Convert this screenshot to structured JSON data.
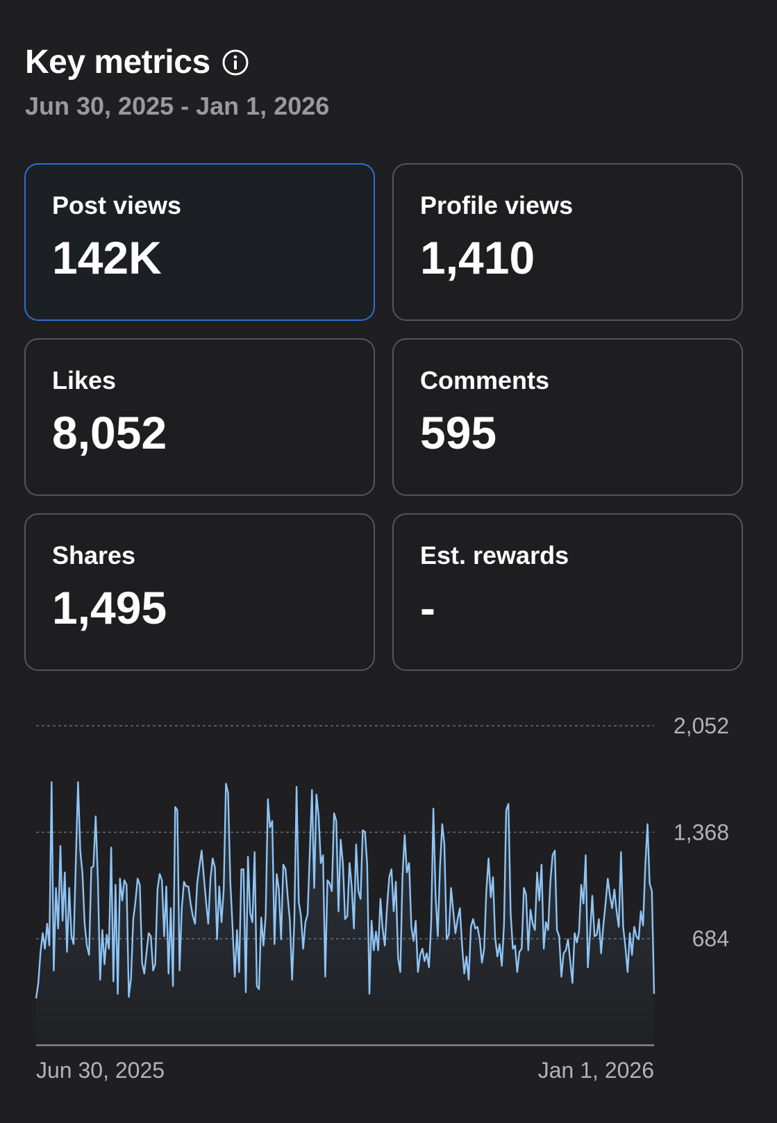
{
  "header": {
    "title": "Key metrics",
    "date_range": "Jun 30, 2025 - Jan 1, 2026",
    "info_icon": "info-icon"
  },
  "metrics": [
    {
      "label": "Post views",
      "value": "142K",
      "selected": true
    },
    {
      "label": "Profile views",
      "value": "1,410",
      "selected": false
    },
    {
      "label": "Likes",
      "value": "8,052",
      "selected": false
    },
    {
      "label": "Comments",
      "value": "595",
      "selected": false
    },
    {
      "label": "Shares",
      "value": "1,495",
      "selected": false
    },
    {
      "label": "Est. rewards",
      "value": "-",
      "selected": false
    }
  ],
  "colors": {
    "selected_border": "#2f6fd1",
    "line": "#8fc4f5",
    "background": "#1f1f21"
  },
  "chart_data": {
    "type": "line",
    "x_start": "Jun 30, 2025",
    "x_end": "Jan 1, 2026",
    "xtick_labels": [
      "Jun 30, 2025",
      "Jan 1, 2026"
    ],
    "ytick_labels": [
      "2,052",
      "1,368",
      "684"
    ],
    "ylim": [
      0,
      2052
    ],
    "grid": "dashed horizontal",
    "series": [
      {
        "values": [
          300,
          400,
          600,
          720,
          620,
          780,
          640,
          1690,
          480,
          1010,
          750,
          1280,
          800,
          1110,
          600,
          1010,
          700,
          650,
          1180,
          1690,
          1250,
          1100,
          780,
          640,
          580,
          1140,
          1150,
          1470,
          1060,
          420,
          740,
          520,
          710,
          620,
          1270,
          410,
          1030,
          330,
          1070,
          930,
          1060,
          1030,
          310,
          430,
          810,
          920,
          1070,
          1030,
          530,
          460,
          590,
          720,
          700,
          480,
          520,
          1000,
          1100,
          1060,
          700,
          1020,
          460,
          880,
          380,
          1530,
          1510,
          480,
          880,
          1050,
          1020,
          1020,
          910,
          830,
          780,
          1040,
          1150,
          1250,
          1080,
          920,
          780,
          1070,
          1200,
          1140,
          680,
          1020,
          790,
          1000,
          1680,
          1620,
          1050,
          760,
          440,
          740,
          470,
          1130,
          1130,
          340,
          1210,
          850,
          790,
          1240,
          380,
          360,
          820,
          640,
          830,
          1580,
          1400,
          1440,
          650,
          1100,
          1000,
          680,
          1160,
          1130,
          950,
          800,
          420,
          800,
          1660,
          920,
          830,
          620,
          790,
          840,
          1230,
          1640,
          1010,
          1610,
          1470,
          1170,
          1220,
          440,
          1060,
          1040,
          990,
          1490,
          1440,
          860,
          1320,
          1170,
          810,
          830,
          1170,
          1020,
          750,
          1290,
          990,
          940,
          1380,
          1370,
          1160,
          330,
          800,
          610,
          730,
          610,
          940,
          750,
          640,
          890,
          1080,
          1130,
          860,
          1050,
          560,
          470,
          1080,
          1350,
          1110,
          1170,
          760,
          670,
          800,
          470,
          580,
          620,
          540,
          590,
          500,
          790,
          1520,
          960,
          700,
          1150,
          1420,
          1290,
          680,
          710,
          1010,
          860,
          720,
          810,
          880,
          640,
          460,
          570,
          420,
          760,
          810,
          750,
          760,
          680,
          530,
          620,
          990,
          1200,
          950,
          1080,
          690,
          570,
          650,
          510,
          780,
          1510,
          1550,
          850,
          620,
          640,
          470,
          600,
          620,
          1010,
          970,
          610,
          870,
          780,
          740,
          1110,
          930,
          1160,
          620,
          790,
          740,
          1050,
          1220,
          1250,
          740,
          700,
          440,
          590,
          610,
          680,
          540,
          400,
          720,
          660,
          730,
          1030,
          910,
          1220,
          500,
          720,
          960,
          700,
          710,
          810,
          590,
          770,
          910,
          1070,
          960,
          880,
          1000,
          860,
          760,
          1240,
          760,
          630,
          470,
          720,
          580,
          760,
          700,
          680,
          860,
          770,
          1150,
          1420,
          1040,
          990,
          330
        ]
      }
    ]
  }
}
